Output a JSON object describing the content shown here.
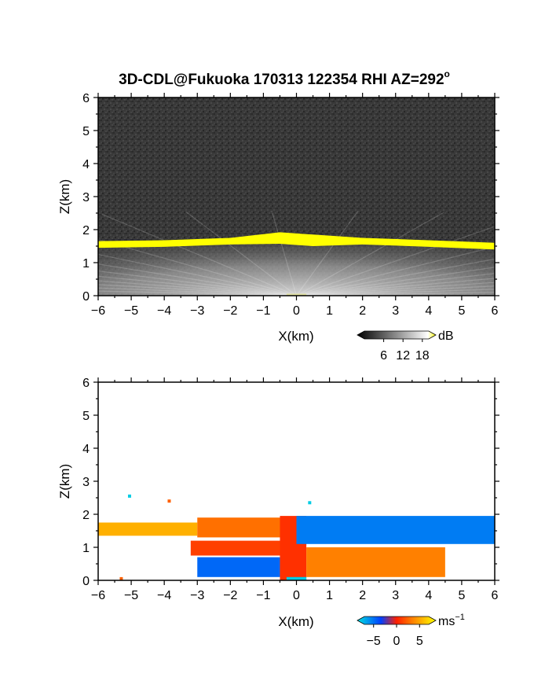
{
  "title": "3D-CDL@Fukuoka 170313 122354 RHI AZ=292",
  "title_degree": "o",
  "chart_data": [
    {
      "type": "heatmap",
      "quantity": "backscatter intensity",
      "x_label": "X(km)",
      "y_label": "Z(km)",
      "x_range": [
        -6,
        6
      ],
      "y_range": [
        0,
        6
      ],
      "x_ticks": [
        -6,
        -5,
        -4,
        -3,
        -2,
        -1,
        0,
        1,
        2,
        3,
        4,
        5,
        6
      ],
      "y_ticks": [
        0,
        1,
        2,
        3,
        4,
        5,
        6
      ],
      "colorbar": {
        "unit": "dB",
        "ticks": [
          "6",
          "12",
          "18"
        ],
        "tick_values": [
          6,
          12,
          18
        ],
        "range": [
          0,
          20
        ],
        "colors": [
          "#000000",
          "#ffffff",
          "#ffff00"
        ]
      },
      "layer_top_profile_km": [
        {
          "x": -6,
          "z": 1.65
        },
        {
          "x": -4,
          "z": 1.68
        },
        {
          "x": -2,
          "z": 1.75
        },
        {
          "x": -0.5,
          "z": 1.92
        },
        {
          "x": 0.5,
          "z": 1.85
        },
        {
          "x": 2,
          "z": 1.75
        },
        {
          "x": 4,
          "z": 1.68
        },
        {
          "x": 6,
          "z": 1.6
        }
      ],
      "background_color": "#333333",
      "layer_color": "#ffff00"
    },
    {
      "type": "heatmap",
      "quantity": "radial velocity",
      "x_label": "X(km)",
      "y_label": "Z(km)",
      "x_range": [
        -6,
        6
      ],
      "y_range": [
        0,
        6
      ],
      "x_ticks": [
        -6,
        -5,
        -4,
        -3,
        -2,
        -1,
        0,
        1,
        2,
        3,
        4,
        5,
        6
      ],
      "y_ticks": [
        0,
        1,
        2,
        3,
        4,
        5,
        6
      ],
      "colorbar": {
        "unit": "ms",
        "unit_exponent": "−1",
        "ticks": [
          "−5",
          "0",
          "5"
        ],
        "tick_values": [
          -5,
          0,
          5
        ],
        "range": [
          -7,
          7
        ],
        "colors": [
          "#00e0e0",
          "#0040ff",
          "#ff2000",
          "#ffff00"
        ]
      },
      "regions": [
        {
          "x0": -6.0,
          "x1": -3.0,
          "z0": 1.35,
          "z1": 1.75,
          "velocity": 4.5
        },
        {
          "x0": -3.0,
          "x1": -0.2,
          "z0": 1.3,
          "z1": 1.9,
          "velocity": 2.5
        },
        {
          "x0": -3.2,
          "x1": -0.3,
          "z0": 0.75,
          "z1": 1.2,
          "velocity": 1.0
        },
        {
          "x0": -3.0,
          "x1": -0.5,
          "z0": 0.1,
          "z1": 0.7,
          "velocity": -4.0
        },
        {
          "x0": -0.5,
          "x1": 0.3,
          "z0": 0.0,
          "z1": 1.95,
          "velocity": 0.5
        },
        {
          "x0": 0.0,
          "x1": 6.0,
          "z0": 1.1,
          "z1": 1.95,
          "velocity": -4.5
        },
        {
          "x0": 0.3,
          "x1": 4.5,
          "z0": 0.1,
          "z1": 1.0,
          "velocity": 3.0
        },
        {
          "x0": -0.3,
          "x1": 0.3,
          "z0": 0.0,
          "z1": 0.1,
          "velocity": -6.5
        }
      ],
      "isolated_points": [
        {
          "x": -5.05,
          "z": 2.55,
          "velocity": -6.5
        },
        {
          "x": -3.85,
          "z": 2.4,
          "velocity": 2.0
        },
        {
          "x": 0.4,
          "z": 2.35,
          "velocity": -6.5
        },
        {
          "x": -5.3,
          "z": 0.05,
          "velocity": 2.0
        }
      ]
    }
  ]
}
